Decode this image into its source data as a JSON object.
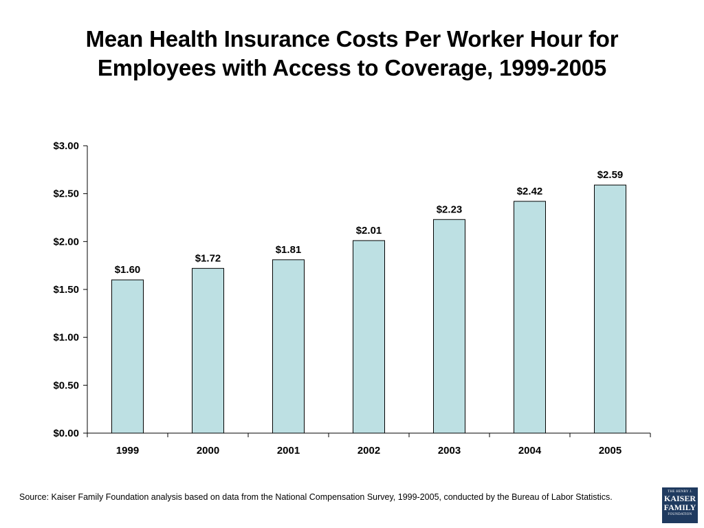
{
  "title": "Mean Health Insurance Costs Per Worker Hour for Employees with Access to Coverage, 1999-2005",
  "source": "Source: Kaiser Family Foundation analysis based on data from the National Compensation Survey, 1999-2005, conducted by the Bureau of Labor Statistics.",
  "logo": {
    "line1": "THE HENRY J.",
    "line2": "KAISER",
    "line3": "FAMILY",
    "line4": "FOUNDATION"
  },
  "chart_data": {
    "type": "bar",
    "categories": [
      "1999",
      "2000",
      "2001",
      "2002",
      "2003",
      "2004",
      "2005"
    ],
    "values": [
      1.6,
      1.72,
      1.81,
      2.01,
      2.23,
      2.42,
      2.59
    ],
    "value_labels": [
      "$1.60",
      "$1.72",
      "$1.81",
      "$2.01",
      "$2.23",
      "$2.42",
      "$2.59"
    ],
    "yticks": [
      0,
      0.5,
      1.0,
      1.5,
      2.0,
      2.5,
      3.0
    ],
    "ytick_labels": [
      "$0.00",
      "$0.50",
      "$1.00",
      "$1.50",
      "$2.00",
      "$2.50",
      "$3.00"
    ],
    "ylim": [
      0,
      3.0
    ],
    "xlabel": "",
    "ylabel": "",
    "grid": false,
    "bar_color": "#bde0e3",
    "bar_edge_color": "#000000"
  }
}
